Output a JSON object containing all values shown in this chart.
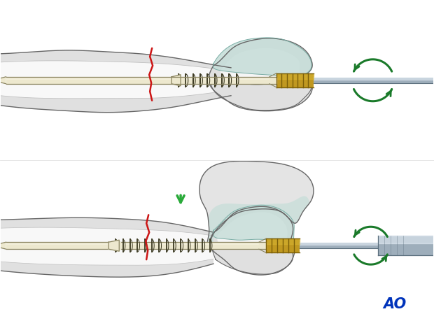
{
  "bg": "#ffffff",
  "bone_outer": "#e0e0e0",
  "bone_inner": "#ececec",
  "bone_cortex": "#f5f5f5",
  "bone_outline": "#666666",
  "bone_shadow": "#cccccc",
  "medullary": "#f8f8f8",
  "cartilage": "#c5ddd8",
  "cartilage_outline": "#7aada5",
  "screw_ivory": "#ede8ce",
  "screw_outline": "#8a8460",
  "screw_highlight": "#f5f2e0",
  "thread_dark": "#3a3820",
  "gold_light": "#d4b030",
  "gold_mid": "#c09820",
  "gold_dark": "#7a5e08",
  "gold_highlight": "#f0d060",
  "driver_light": "#d0dae4",
  "driver_mid": "#9eaebb",
  "driver_dark": "#5a6e7c",
  "driver_highlight": "#eaf2fa",
  "fracture_red": "#cc1515",
  "green_dark": "#1a7a2a",
  "green_mid": "#2aaa3a",
  "green_light": "#55cc66",
  "ao_blue": "#0033bb"
}
